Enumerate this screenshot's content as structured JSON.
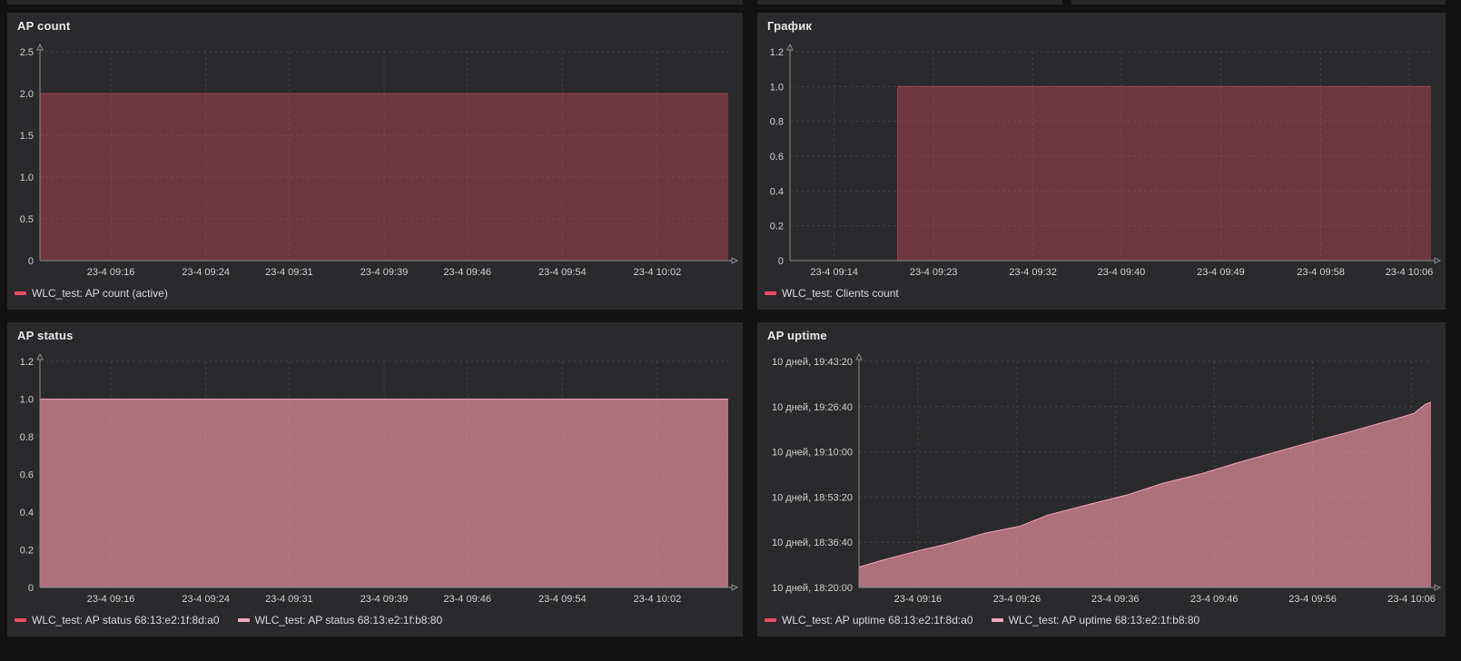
{
  "colors": {
    "page_bg": "#121213",
    "panel_bg": "#2a2a2d",
    "adjacent_panel_edge": "#28282b",
    "grid": "#555555",
    "axis": "#8c8c8c",
    "tick_text": "#d0d0d0",
    "series_red": "#ea4d64",
    "series_pink": "#f2a9bb"
  },
  "chart_data": [
    {
      "type": "area",
      "title": "AP count",
      "ylim": [
        0,
        2.5
      ],
      "grid": true,
      "legend_position": "bottom",
      "ylabel_width": 36,
      "yticks": [
        {
          "v": 0,
          "label": "0"
        },
        {
          "v": 0.5,
          "label": "0.5"
        },
        {
          "v": 1,
          "label": "1.0"
        },
        {
          "v": 1.5,
          "label": "1.5"
        },
        {
          "v": 2,
          "label": "2.0"
        },
        {
          "v": 2.5,
          "label": "2.5"
        }
      ],
      "xticks": [
        {
          "f": 0.103,
          "label": "23-4 09:16"
        },
        {
          "f": 0.241,
          "label": "23-4 09:24"
        },
        {
          "f": 0.362,
          "label": "23-4 09:31"
        },
        {
          "f": 0.5,
          "label": "23-4 09:39"
        },
        {
          "f": 0.621,
          "label": "23-4 09:46"
        },
        {
          "f": 0.759,
          "label": "23-4 09:54"
        },
        {
          "f": 0.897,
          "label": "23-4 10:02"
        }
      ],
      "series": [
        {
          "name": "WLC_test: AP count (active)",
          "color": "#ea4d64",
          "fill_opacity": 0.35,
          "stroke_opacity": 0.55,
          "points": [
            [
              0,
              2
            ],
            [
              1,
              2
            ]
          ]
        }
      ]
    },
    {
      "type": "area",
      "title": "График",
      "ylim": [
        0,
        1.2
      ],
      "grid": true,
      "legend_position": "bottom",
      "ylabel_width": 36,
      "yticks": [
        {
          "v": 0,
          "label": "0"
        },
        {
          "v": 0.2,
          "label": "0.2"
        },
        {
          "v": 0.4,
          "label": "0.4"
        },
        {
          "v": 0.6,
          "label": "0.6"
        },
        {
          "v": 0.8,
          "label": "0.8"
        },
        {
          "v": 1,
          "label": "1.0"
        },
        {
          "v": 1.2,
          "label": "1.2"
        }
      ],
      "xticks": [
        {
          "f": 0.069,
          "label": "23-4 09:14"
        },
        {
          "f": 0.224,
          "label": "23-4 09:23"
        },
        {
          "f": 0.379,
          "label": "23-4 09:32"
        },
        {
          "f": 0.517,
          "label": "23-4 09:40"
        },
        {
          "f": 0.672,
          "label": "23-4 09:49"
        },
        {
          "f": 0.828,
          "label": "23-4 09:58"
        },
        {
          "f": 0.966,
          "label": "23-4 10:06"
        }
      ],
      "series": [
        {
          "name": "WLC_test: Clients count",
          "color": "#ea4d64",
          "fill_opacity": 0.35,
          "stroke_opacity": 0.55,
          "points": [
            [
              0,
              0
            ],
            [
              0.168,
              0
            ],
            [
              0.168,
              1
            ],
            [
              1,
              1
            ]
          ]
        }
      ]
    },
    {
      "type": "area",
      "title": "AP status",
      "ylim": [
        0,
        1.2
      ],
      "grid": true,
      "legend_position": "bottom",
      "ylabel_width": 36,
      "yticks": [
        {
          "v": 0,
          "label": "0"
        },
        {
          "v": 0.2,
          "label": "0.2"
        },
        {
          "v": 0.4,
          "label": "0.4"
        },
        {
          "v": 0.6,
          "label": "0.6"
        },
        {
          "v": 0.8,
          "label": "0.8"
        },
        {
          "v": 1,
          "label": "1.0"
        },
        {
          "v": 1.2,
          "label": "1.2"
        }
      ],
      "xticks": [
        {
          "f": 0.103,
          "label": "23-4 09:16"
        },
        {
          "f": 0.241,
          "label": "23-4 09:24"
        },
        {
          "f": 0.362,
          "label": "23-4 09:31"
        },
        {
          "f": 0.5,
          "label": "23-4 09:39"
        },
        {
          "f": 0.621,
          "label": "23-4 09:46"
        },
        {
          "f": 0.759,
          "label": "23-4 09:54"
        },
        {
          "f": 0.897,
          "label": "23-4 10:02"
        }
      ],
      "series": [
        {
          "name": "WLC_test: AP status 68:13:e2:1f:8d:a0",
          "color": "#ea4d64",
          "fill_opacity": 0.35,
          "stroke_opacity": 0.55,
          "points": [
            [
              0,
              1
            ],
            [
              1,
              1
            ]
          ]
        },
        {
          "name": "WLC_test: AP status 68:13:e2:1f:b8:80",
          "color": "#f2a9bb",
          "fill_opacity": 0.5,
          "stroke_opacity": 0.9,
          "points": [
            [
              0,
              1
            ],
            [
              1,
              1
            ]
          ]
        }
      ]
    },
    {
      "type": "area",
      "title": "AP uptime",
      "ylim": [
        930000,
        935000
      ],
      "grid": true,
      "legend_position": "bottom",
      "ylabel_width": 112,
      "yticks": [
        {
          "v": 930000,
          "label": "10 дней, 18:20:00"
        },
        {
          "v": 931000,
          "label": "10 дней, 18:36:40"
        },
        {
          "v": 932000,
          "label": "10 дней, 18:53:20"
        },
        {
          "v": 933000,
          "label": "10 дней, 19:10:00"
        },
        {
          "v": 934000,
          "label": "10 дней, 19:26:40"
        },
        {
          "v": 935000,
          "label": "10 дней, 19:43:20"
        }
      ],
      "xticks": [
        {
          "f": 0.103,
          "label": "23-4 09:16"
        },
        {
          "f": 0.276,
          "label": "23-4 09:26"
        },
        {
          "f": 0.448,
          "label": "23-4 09:36"
        },
        {
          "f": 0.621,
          "label": "23-4 09:46"
        },
        {
          "f": 0.793,
          "label": "23-4 09:56"
        },
        {
          "f": 0.966,
          "label": "23-4 10:06"
        }
      ],
      "series": [
        {
          "name": "WLC_test: AP uptime 68:13:e2:1f:8d:a0",
          "color": "#ea4d64",
          "fill_opacity": 0.35,
          "stroke_opacity": 0.55,
          "points": [
            [
              0,
              930450
            ],
            [
              0.04,
              930600
            ],
            [
              0.1,
              930800
            ],
            [
              0.16,
              930980
            ],
            [
              0.22,
              931200
            ],
            [
              0.28,
              931350
            ],
            [
              0.33,
              931600
            ],
            [
              0.4,
              931830
            ],
            [
              0.47,
              932050
            ],
            [
              0.53,
              932300
            ],
            [
              0.6,
              932520
            ],
            [
              0.66,
              932750
            ],
            [
              0.73,
              933000
            ],
            [
              0.8,
              933250
            ],
            [
              0.86,
              933450
            ],
            [
              0.93,
              933700
            ],
            [
              0.97,
              933850
            ],
            [
              0.99,
              934050
            ],
            [
              1,
              934100
            ]
          ]
        },
        {
          "name": "WLC_test: AP uptime 68:13:e2:1f:b8:80",
          "color": "#f2a9bb",
          "fill_opacity": 0.5,
          "stroke_opacity": 0.9,
          "points": [
            [
              0,
              930450
            ],
            [
              0.04,
              930600
            ],
            [
              0.1,
              930800
            ],
            [
              0.16,
              930980
            ],
            [
              0.22,
              931200
            ],
            [
              0.28,
              931350
            ],
            [
              0.33,
              931600
            ],
            [
              0.4,
              931830
            ],
            [
              0.47,
              932050
            ],
            [
              0.53,
              932300
            ],
            [
              0.6,
              932520
            ],
            [
              0.66,
              932750
            ],
            [
              0.73,
              933000
            ],
            [
              0.8,
              933250
            ],
            [
              0.86,
              933450
            ],
            [
              0.93,
              933700
            ],
            [
              0.97,
              933850
            ],
            [
              0.99,
              934050
            ],
            [
              1,
              934100
            ]
          ]
        }
      ]
    }
  ]
}
